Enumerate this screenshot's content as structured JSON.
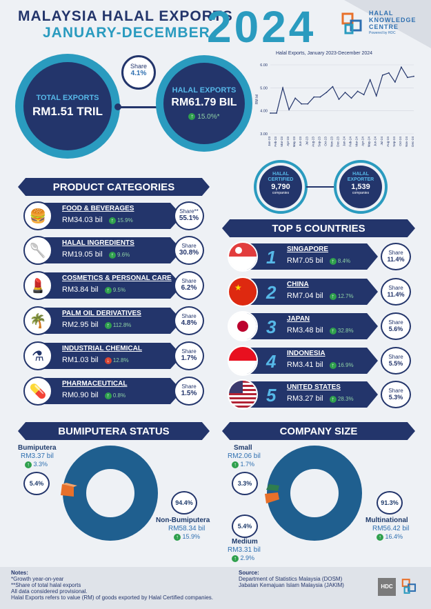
{
  "header": {
    "title_line1": "MALAYSIA HALAL EXPORTS",
    "title_line2": "JANUARY-DECEMBER",
    "year": "2024",
    "logo_text1": "HALAL",
    "logo_text2": "KNOWLEDGE",
    "logo_text3": "CENTRE",
    "logo_sub": "Powered by HDC"
  },
  "overview": {
    "total_label": "TOTAL EXPORTS",
    "total_value": "RM1.51 TRIL",
    "share_label": "Share",
    "share_value": "4.1%",
    "halal_label": "HALAL EXPORTS",
    "halal_value": "RM61.79 BIL",
    "halal_growth": "15.0%*",
    "certified_label": "HALAL CERTIFIED",
    "certified_value": "9,790",
    "certified_unit": "companies",
    "exporter_label": "HALAL EXPORTER",
    "exporter_value": "1,539",
    "exporter_unit": "companies"
  },
  "chart_data": {
    "type": "line",
    "title": "Halal Exports, January 2023-December 2024",
    "ylabel": "RM bil",
    "ylim": [
      3.0,
      6.0
    ],
    "yticks": [
      "3.00",
      "4.00",
      "5.00",
      "6.00"
    ],
    "categories": [
      "Jan-23",
      "Feb-23",
      "Mar-23",
      "Apr-23",
      "May-23",
      "Jun-23",
      "Jul-23",
      "Aug-23",
      "Sep-23",
      "Oct-23",
      "Nov-23",
      "Dec-23",
      "Jan-24",
      "Feb-24",
      "Mar-24",
      "Apr-24",
      "May-24",
      "Jun-24",
      "Jul-24",
      "Aug-24",
      "Sep-24",
      "Oct-24",
      "Nov-24",
      "Dec-24"
    ],
    "values": [
      3.9,
      3.9,
      5.0,
      4.05,
      4.55,
      4.3,
      4.3,
      4.6,
      4.6,
      4.8,
      5.05,
      4.5,
      4.8,
      4.55,
      4.85,
      4.7,
      5.35,
      4.65,
      5.55,
      5.65,
      5.25,
      5.9,
      5.45,
      5.5
    ]
  },
  "sections": {
    "product": "PRODUCT CATEGORIES",
    "countries": "TOP 5 COUNTRIES",
    "bumi": "BUMIPUTERA STATUS",
    "company": "COMPANY SIZE"
  },
  "categories": [
    {
      "name": "FOOD & BEVERAGES",
      "value": "RM34.03 bil",
      "growth": "15.9%",
      "dir": "up",
      "share_label": "Share**",
      "share": "55.1%",
      "icon": "food-icon",
      "glyph": "🍔"
    },
    {
      "name": "HALAL INGREDIENTS",
      "value": "RM19.05 bil",
      "growth": "9.6%",
      "dir": "up",
      "share_label": "Share",
      "share": "30.8%",
      "icon": "ingredients-icon",
      "glyph": "🥄"
    },
    {
      "name": "COSMETICS & PERSONAL CARE",
      "value": "RM3.84 bil",
      "growth": "9.5%",
      "dir": "up",
      "share_label": "Share",
      "share": "6.2%",
      "icon": "cosmetics-icon",
      "glyph": "💄"
    },
    {
      "name": "PALM OIL DERIVATIVES",
      "value": "RM2.95 bil",
      "growth": "112.8%",
      "dir": "up",
      "share_label": "Share",
      "share": "4.8%",
      "icon": "palm-icon",
      "glyph": "🌴"
    },
    {
      "name": "INDUSTRIAL CHEMICAL",
      "value": "RM1.03 bil",
      "growth": "12.8%",
      "dir": "down",
      "share_label": "Share",
      "share": "1.7%",
      "icon": "flask-icon",
      "glyph": "⚗"
    },
    {
      "name": "PHARMACEUTICAL",
      "value": "RM0.90 bil",
      "growth": "0.8%",
      "dir": "up",
      "share_label": "Share",
      "share": "1.5%",
      "icon": "pharma-icon",
      "glyph": "💊"
    }
  ],
  "countries": [
    {
      "rank": "1",
      "name": "SINGAPORE",
      "value": "RM7.05 bil",
      "growth": "8.4%",
      "share_label": "Share",
      "share": "11.4%",
      "flag": "singapore"
    },
    {
      "rank": "2",
      "name": "CHINA",
      "value": "RM7.04 bil",
      "growth": "12.7%",
      "share_label": "Share",
      "share": "11.4%",
      "flag": "china"
    },
    {
      "rank": "3",
      "name": "JAPAN",
      "value": "RM3.48 bil",
      "growth": "32.8%",
      "share_label": "Share",
      "share": "5.6%",
      "flag": "japan"
    },
    {
      "rank": "4",
      "name": "INDONESIA",
      "value": "RM3.41 bil",
      "growth": "16.9%",
      "share_label": "Share",
      "share": "5.5%",
      "flag": "indonesia"
    },
    {
      "rank": "5",
      "name": "UNITED STATES",
      "value": "RM3.27 bil",
      "growth": "28.3%",
      "share_label": "Share",
      "share": "5.3%",
      "flag": "usa"
    }
  ],
  "bumi": {
    "a_name": "Bumiputera",
    "a_value": "RM3.37 bil",
    "a_growth": "3.3%",
    "a_share": "5.4%",
    "b_name": "Non-Bumiputera",
    "b_value": "RM58.34 bil",
    "b_growth": "15.9%",
    "b_share": "94.4%"
  },
  "company": {
    "small_name": "Small",
    "small_value": "RM2.06 bil",
    "small_growth": "1.7%",
    "small_share": "3.3%",
    "medium_name": "Medium",
    "medium_value": "RM3.31 bil",
    "medium_growth": "2.9%",
    "medium_share": "5.4%",
    "multi_name": "Multinational",
    "multi_value": "RM56.42 bil",
    "multi_growth": "16.4%",
    "multi_share": "91.3%"
  },
  "footer": {
    "notes_title": "Notes:",
    "note1": "*Growth year-on-year",
    "note2": "**Share of total halal exports",
    "note3": "All data considered provisional.",
    "note4": "Halal Exports refers to value (RM) of goods exported by Halal Certified companies.",
    "source_title": "Source:",
    "source1": "Department of Statistics Malaysia (DOSM)",
    "source2": "Jabatan Kemajuan Islam Malaysia (JAKIM)",
    "hdc": "HDC"
  },
  "colors": {
    "navy": "#23356b",
    "blue": "#2e6fb0",
    "teal": "#2a9bbf",
    "orange": "#e8702a",
    "green": "#2f7d4f"
  }
}
